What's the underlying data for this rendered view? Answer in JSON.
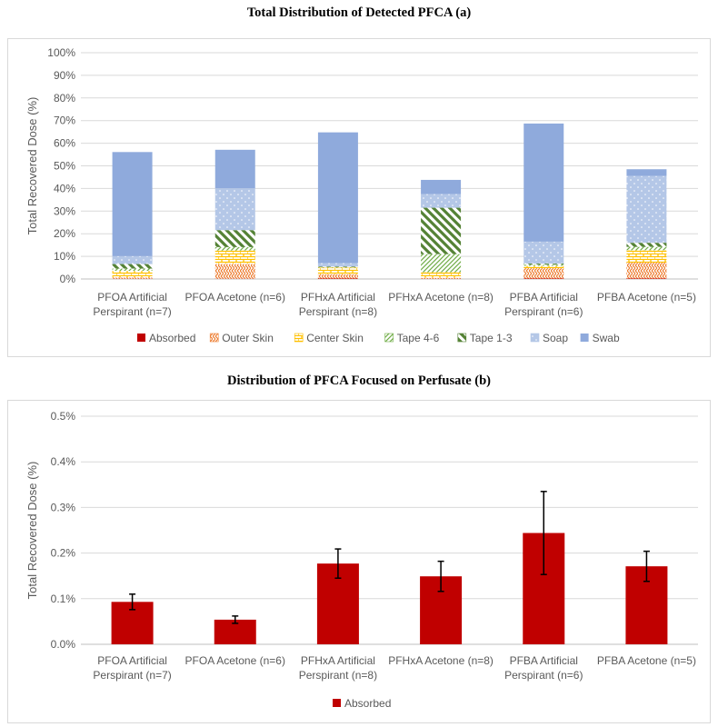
{
  "chart_data": [
    {
      "type": "bar",
      "stacked": true,
      "title": "Total Distribution of Detected PFCA (a)",
      "ylabel": "Total Recovered Dose (%)",
      "ylim": [
        0,
        100
      ],
      "yticks": [
        "0%",
        "10%",
        "20%",
        "30%",
        "40%",
        "50%",
        "60%",
        "70%",
        "80%",
        "90%",
        "100%"
      ],
      "categories": [
        [
          "PFOA Artificial",
          "Perspirant (n=7)"
        ],
        [
          "PFOA Acetone (n=6)"
        ],
        [
          "PFHxA Artificial",
          "Perspirant (n=8)"
        ],
        [
          "PFHxA Acetone (n=8)"
        ],
        [
          "PFBA Artificial",
          "Perspirant (n=6)"
        ],
        [
          "PFBA Acetone (n=5)"
        ]
      ],
      "legend_position": "bottom",
      "grid": true,
      "series": [
        {
          "name": "Absorbed",
          "color": "#c00000",
          "pattern": "solid",
          "values": [
            0.1,
            0.1,
            0.2,
            0.1,
            0.2,
            0.2
          ]
        },
        {
          "name": "Outer Skin",
          "color": "#ed7d31",
          "pattern": "weave",
          "values": [
            0.5,
            6.5,
            1.8,
            0.4,
            4.6,
            7.0
          ]
        },
        {
          "name": "Center Skin",
          "color": "#ffc000",
          "pattern": "brick",
          "values": [
            3.0,
            6.0,
            3.0,
            2.5,
            1.0,
            5.5
          ]
        },
        {
          "name": "Tape 4-6",
          "color": "#70ad47",
          "pattern": "light-diagonal",
          "values": [
            1.0,
            1.5,
            0.2,
            8.0,
            0.5,
            1.5
          ]
        },
        {
          "name": "Tape 1-3",
          "color": "#548235",
          "pattern": "wide-diagonal",
          "values": [
            2.0,
            7.5,
            0.3,
            20.5,
            0.5,
            1.8
          ]
        },
        {
          "name": "Soap",
          "color": "#b4c7e7",
          "pattern": "dots",
          "values": [
            3.5,
            18.5,
            1.5,
            6.0,
            9.7,
            29.5
          ]
        },
        {
          "name": "Swab",
          "color": "#8faadc",
          "pattern": "solid",
          "values": [
            46.0,
            17.0,
            57.8,
            6.3,
            52.2,
            3.0
          ]
        }
      ]
    },
    {
      "type": "bar",
      "title": "Distribution of PFCA Focused on Perfusate (b)",
      "ylabel": "Total Recovered Dose (%)",
      "ylim": [
        0,
        0.5
      ],
      "yticks": [
        "0.0%",
        "0.1%",
        "0.2%",
        "0.3%",
        "0.4%",
        "0.5%"
      ],
      "categories": [
        [
          "PFOA Artificial",
          "Perspirant (n=7)"
        ],
        [
          "PFOA Acetone (n=6)"
        ],
        [
          "PFHxA Artificial",
          "Perspirant (n=8)"
        ],
        [
          "PFHxA Acetone (n=8)"
        ],
        [
          "PFBA Artificial",
          "Perspirant (n=6)"
        ],
        [
          "PFBA Acetone (n=5)"
        ]
      ],
      "legend_position": "bottom",
      "grid": true,
      "series": [
        {
          "name": "Absorbed",
          "color": "#c00000",
          "values": [
            0.093,
            0.054,
            0.177,
            0.149,
            0.244,
            0.171
          ],
          "error": [
            0.017,
            0.008,
            0.032,
            0.033,
            0.091,
            0.033
          ]
        }
      ]
    }
  ]
}
